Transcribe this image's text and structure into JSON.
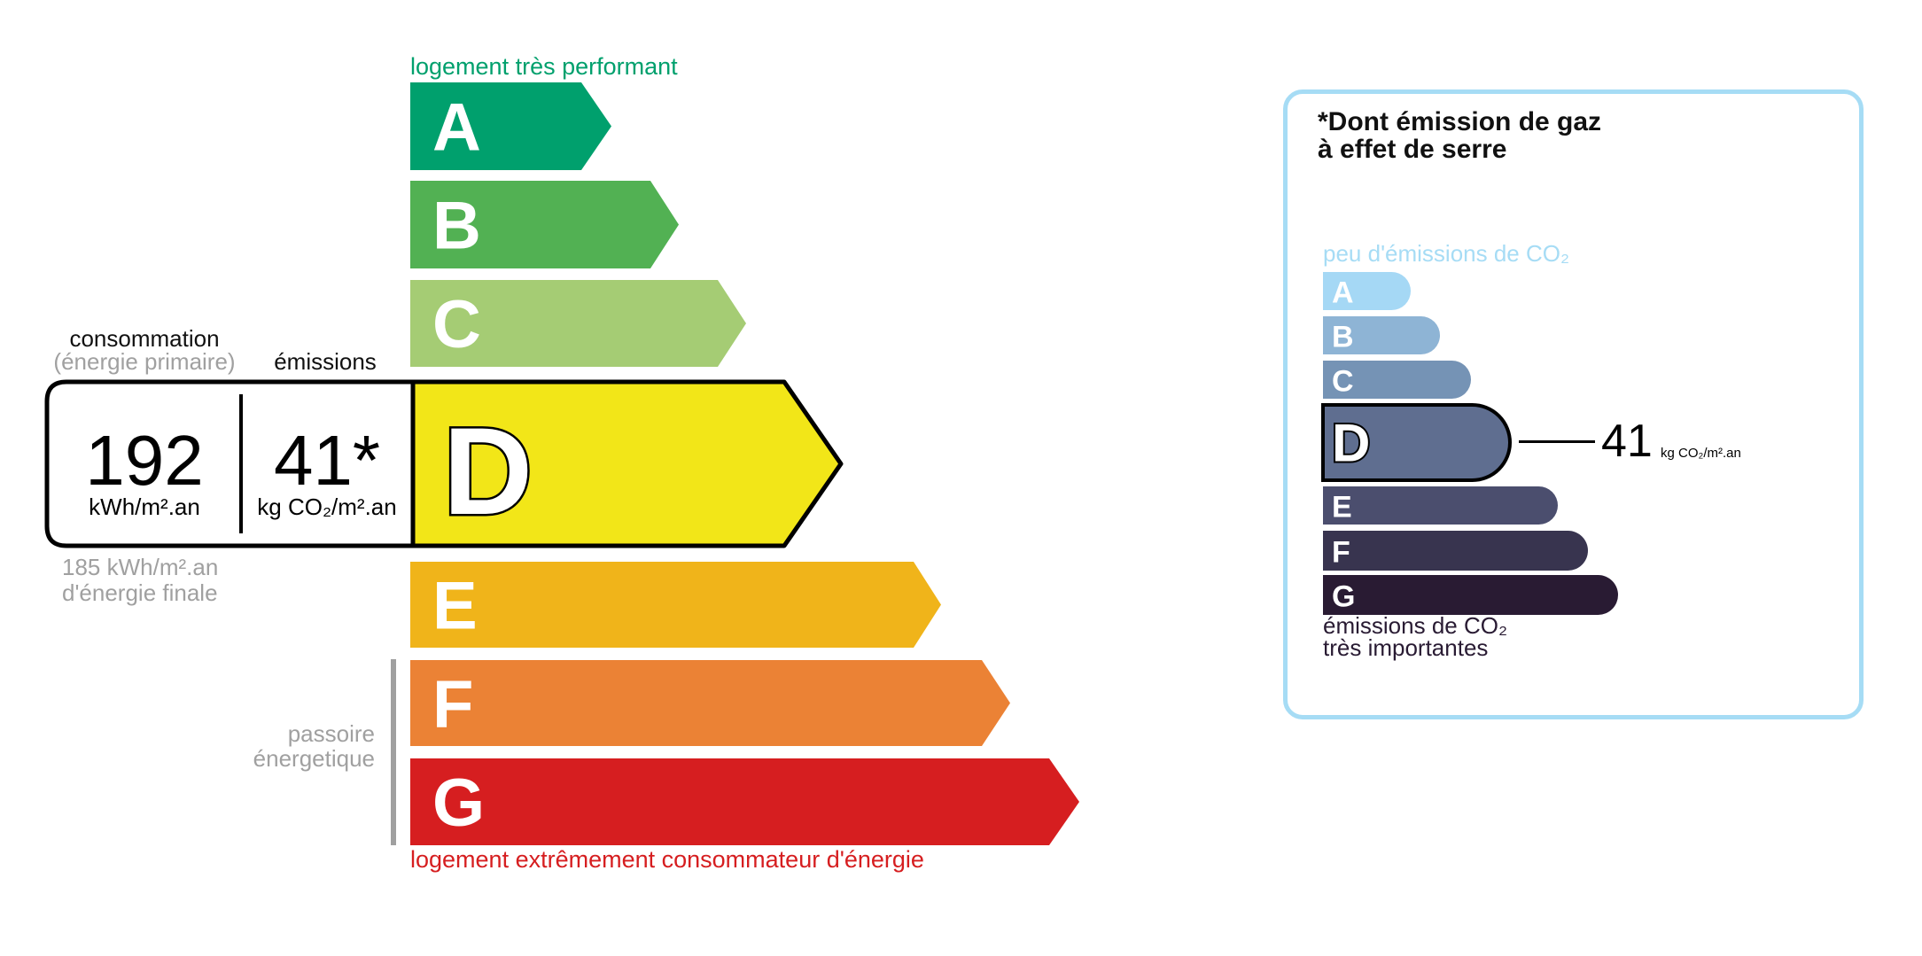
{
  "energy": {
    "top_label": "logement très performant",
    "bottom_label": "logement extrêmement consommateur d'énergie",
    "passoire_label": [
      "passoire",
      "énergetique"
    ],
    "classes": [
      {
        "letter": "A",
        "color": "#00a06d"
      },
      {
        "letter": "B",
        "color": "#52b153"
      },
      {
        "letter": "C",
        "color": "#a5cc74"
      },
      {
        "letter": "D",
        "color": "#f2e618"
      },
      {
        "letter": "E",
        "color": "#f0b41a"
      },
      {
        "letter": "F",
        "color": "#eb8235"
      },
      {
        "letter": "G",
        "color": "#d61e20"
      }
    ],
    "current_class": "D",
    "consumption_header": "consommation",
    "consumption_subheader": "(énergie primaire)",
    "emissions_header": "émissions",
    "consumption_value": "192",
    "consumption_unit": "kWh/m².an",
    "emissions_value": "41*",
    "emissions_unit": "kg CO₂/m².an",
    "final_energy_value": "185 kWh/m².an",
    "final_energy_label": "d'énergie finale",
    "top_color": "#00a06d",
    "bottom_color": "#d61e20"
  },
  "ghg": {
    "title_line1": "*Dont émission de gaz",
    "title_line2": "à effet de serre",
    "top_label": "peu d'émissions de CO₂",
    "bottom_label_line1": "émissions de CO₂",
    "bottom_label_line2": "très importantes",
    "classes": [
      {
        "letter": "A",
        "color": "#a5d8f5"
      },
      {
        "letter": "B",
        "color": "#8eb4d5"
      },
      {
        "letter": "C",
        "color": "#7593b5"
      },
      {
        "letter": "D",
        "color": "#5f6e90"
      },
      {
        "letter": "E",
        "color": "#4b4e6e"
      },
      {
        "letter": "F",
        "color": "#38344f"
      },
      {
        "letter": "G",
        "color": "#291b33"
      }
    ],
    "current_class": "D",
    "value": "41",
    "unit": "kg CO₂/m².an",
    "border_color": "#a6dcf5"
  }
}
